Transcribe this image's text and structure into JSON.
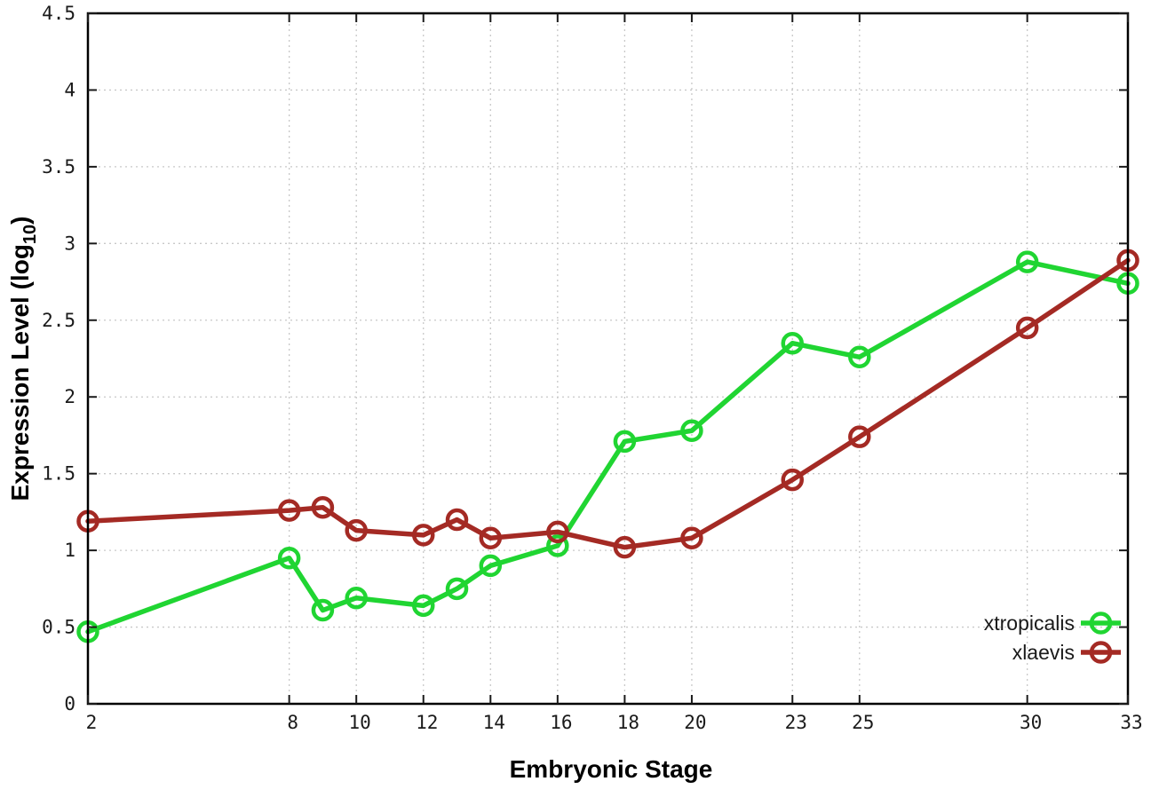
{
  "chart_data": {
    "type": "line",
    "title": "",
    "xlabel": "Embryonic Stage",
    "ylabel": {
      "main": "Expression Level (log",
      "sub": "10",
      "end": ")"
    },
    "x": [
      2,
      8,
      9,
      10,
      12,
      13,
      14,
      16,
      18,
      20,
      23,
      25,
      30,
      33
    ],
    "series": [
      {
        "name": "xtropicalis",
        "color": "#20d532",
        "values": [
          0.47,
          0.95,
          0.61,
          0.69,
          0.64,
          0.75,
          0.9,
          1.03,
          1.71,
          1.78,
          2.35,
          2.26,
          2.88,
          2.74
        ]
      },
      {
        "name": "xlaevis",
        "color": "#a42a24",
        "values": [
          1.19,
          1.26,
          1.28,
          1.13,
          1.1,
          1.2,
          1.08,
          1.12,
          1.02,
          1.08,
          1.46,
          1.74,
          2.45,
          2.89
        ]
      }
    ],
    "xlim": [
      2,
      33
    ],
    "ylim": [
      0,
      4.5
    ],
    "xtick_values": [
      2,
      8,
      10,
      12,
      14,
      16,
      18,
      20,
      23,
      25,
      30,
      33
    ],
    "xtick_labels": [
      "2",
      "8",
      "10",
      "12",
      "14",
      "16",
      "18",
      "20",
      "23",
      "25",
      "30",
      "33"
    ],
    "ytick_values": [
      0,
      0.5,
      1,
      1.5,
      2,
      2.5,
      3,
      3.5,
      4,
      4.5
    ],
    "ytick_labels": [
      "0",
      "0.5",
      "1",
      "1.5",
      "2",
      "2.5",
      "3",
      "3.5",
      "4",
      "4.5"
    ],
    "grid": "dotted",
    "grid_color": "#c8c8c8",
    "border_color": "#000000",
    "legend_position": "bottom-right-inside"
  }
}
